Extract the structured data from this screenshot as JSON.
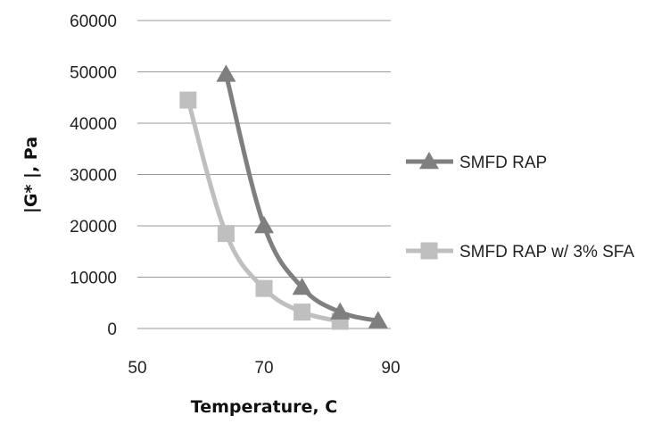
{
  "chart_data": {
    "type": "line",
    "title": "",
    "xlabel": "Temperature, C",
    "ylabel": "|G* |, Pa",
    "xlim": [
      50,
      90
    ],
    "ylim": [
      0,
      60000
    ],
    "xticks": [
      "50",
      "70",
      "90"
    ],
    "yticks": [
      "0",
      "10000",
      "20000",
      "30000",
      "40000",
      "50000",
      "60000"
    ],
    "grid": "horizontal",
    "legend_position": "right",
    "series": [
      {
        "name": "SMFD RAP",
        "color": "#7f7f7f",
        "marker": "triangle",
        "x": [
          64,
          70,
          76,
          82,
          88
        ],
        "y": [
          49500,
          20000,
          8000,
          3200,
          1500
        ]
      },
      {
        "name": "SMFD RAP w/ 3% SFA",
        "color": "#bfbfbf",
        "marker": "square",
        "x": [
          58,
          64,
          70,
          76,
          82
        ],
        "y": [
          44500,
          18500,
          7800,
          3200,
          1400
        ]
      }
    ]
  }
}
